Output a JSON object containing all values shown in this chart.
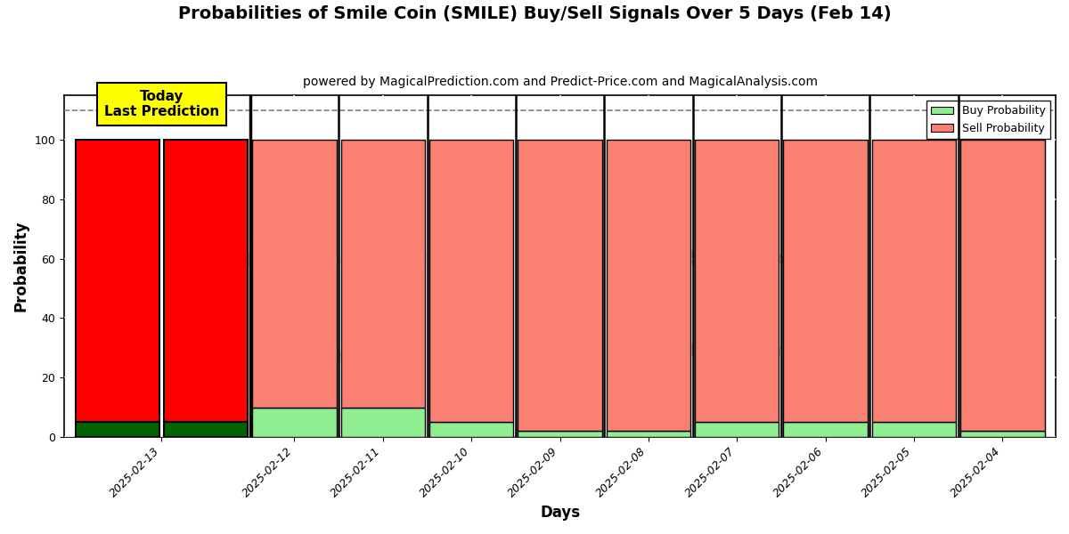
{
  "title": "Probabilities of Smile Coin (SMILE) Buy/Sell Signals Over 5 Days (Feb 14)",
  "subtitle": "powered by MagicalPrediction.com and Predict-Price.com and MagicalAnalysis.com",
  "xlabel": "Days",
  "ylabel": "Probability",
  "dates": [
    "2025-02-13",
    "2025-02-13",
    "2025-02-12",
    "2025-02-11",
    "2025-02-10",
    "2025-02-09",
    "2025-02-08",
    "2025-02-07",
    "2025-02-06",
    "2025-02-05",
    "2025-02-04"
  ],
  "buy_values": [
    5,
    5,
    10,
    10,
    5,
    2,
    2,
    5,
    5,
    5,
    2
  ],
  "sell_values": [
    95,
    95,
    90,
    90,
    95,
    98,
    98,
    95,
    95,
    95,
    98
  ],
  "today_annotation": "Today\nLast Prediction",
  "today_box_color": "#FFFF00",
  "today_buy_color": "#006400",
  "today_sell_color": "#FF0000",
  "buy_color": "#90EE90",
  "sell_color": "#FA8072",
  "ylim": [
    0,
    115
  ],
  "yticks": [
    0,
    20,
    40,
    60,
    80,
    100
  ],
  "dashed_line_y": 110,
  "legend_buy_label": "Buy Probability",
  "legend_sell_label": "Sell Probability",
  "grid_color": "#FFFFFF",
  "bg_color": "#FFFFFF",
  "title_fontsize": 14,
  "subtitle_fontsize": 10,
  "axis_label_fontsize": 12,
  "tick_label_fontsize": 9,
  "bar_width": 0.95
}
